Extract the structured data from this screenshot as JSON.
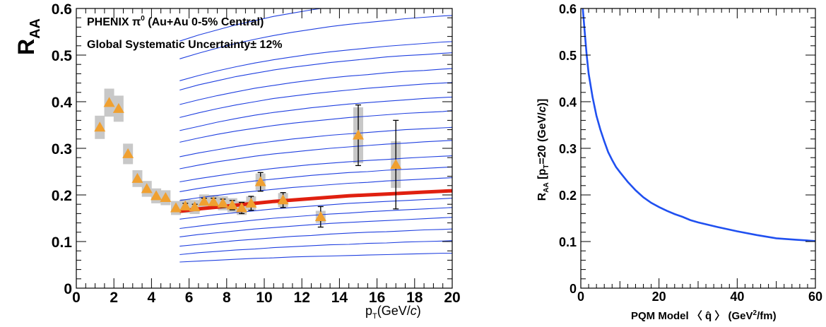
{
  "chart_data": [
    {
      "type": "scatter",
      "ylabel_main": "R",
      "ylabel_sub": "AA",
      "xlabel_main": "p",
      "xlabel_sub": "T",
      "xlabel_rest": "(GeV/",
      "xlabel_c": "c",
      "xlabel_close": ")",
      "annotation_line1_a": "PHENIX π",
      "annotation_line1_sup": "0",
      "annotation_line1_b": " (Au+Au 0-5% Central)",
      "annotation_line2": "Global Systematic Uncertainty± 12%",
      "xlim": [
        0,
        20
      ],
      "ylim": [
        0,
        0.6
      ],
      "xticks": [
        "0",
        "2",
        "4",
        "6",
        "8",
        "10",
        "12",
        "14",
        "16",
        "18",
        "20"
      ],
      "yticks": [
        "0",
        "0.1",
        "0.2",
        "0.3",
        "0.4",
        "0.5",
        "0.6"
      ],
      "grid": false,
      "colors": {
        "data": "#f0a030",
        "systematic": "#c8c8c8",
        "model_curves": "#2040e0",
        "best_fit": "#e02010",
        "error_bars": "#000000"
      },
      "data_points": [
        {
          "x": 1.25,
          "y": 0.345,
          "syst": 0.025,
          "stat": 0.0
        },
        {
          "x": 1.75,
          "y": 0.398,
          "syst": 0.03,
          "stat": 0.0
        },
        {
          "x": 2.25,
          "y": 0.385,
          "syst": 0.028,
          "stat": 0.0
        },
        {
          "x": 2.75,
          "y": 0.288,
          "syst": 0.022,
          "stat": 0.0
        },
        {
          "x": 3.25,
          "y": 0.235,
          "syst": 0.018,
          "stat": 0.0
        },
        {
          "x": 3.75,
          "y": 0.213,
          "syst": 0.017,
          "stat": 0.0
        },
        {
          "x": 4.25,
          "y": 0.198,
          "syst": 0.016,
          "stat": 0.0
        },
        {
          "x": 4.75,
          "y": 0.194,
          "syst": 0.016,
          "stat": 0.0
        },
        {
          "x": 5.3,
          "y": 0.172,
          "syst": 0.015,
          "stat": 0.0
        },
        {
          "x": 5.8,
          "y": 0.176,
          "syst": 0.015,
          "stat": 0.006
        },
        {
          "x": 6.3,
          "y": 0.174,
          "syst": 0.015,
          "stat": 0.006
        },
        {
          "x": 6.8,
          "y": 0.186,
          "syst": 0.015,
          "stat": 0.007
        },
        {
          "x": 7.3,
          "y": 0.185,
          "syst": 0.015,
          "stat": 0.008
        },
        {
          "x": 7.8,
          "y": 0.182,
          "syst": 0.015,
          "stat": 0.009
        },
        {
          "x": 8.3,
          "y": 0.178,
          "syst": 0.015,
          "stat": 0.01
        },
        {
          "x": 8.8,
          "y": 0.172,
          "syst": 0.015,
          "stat": 0.012
        },
        {
          "x": 9.3,
          "y": 0.182,
          "syst": 0.015,
          "stat": 0.015
        },
        {
          "x": 9.8,
          "y": 0.228,
          "syst": 0.018,
          "stat": 0.02
        },
        {
          "x": 11.0,
          "y": 0.189,
          "syst": 0.015,
          "stat": 0.016
        },
        {
          "x": 13.0,
          "y": 0.153,
          "syst": 0.013,
          "stat": 0.022
        },
        {
          "x": 15.0,
          "y": 0.328,
          "syst": 0.06,
          "stat": 0.065
        },
        {
          "x": 17.0,
          "y": 0.265,
          "syst": 0.05,
          "stat": 0.095
        }
      ],
      "model_x": [
        5.5,
        6.5,
        7.5,
        8.5,
        9.5,
        10.5,
        11.5,
        12.5,
        13.5,
        14.5,
        15.5,
        16.5,
        17.5,
        18.5,
        19.5,
        20
      ],
      "model_curves": [
        [
          0.056,
          0.058,
          0.06,
          0.062,
          0.064,
          0.065,
          0.067,
          0.068,
          0.069,
          0.07,
          0.071,
          0.072,
          0.073,
          0.074,
          0.075,
          0.075
        ],
        [
          0.072,
          0.076,
          0.079,
          0.082,
          0.084,
          0.087,
          0.089,
          0.091,
          0.093,
          0.094,
          0.096,
          0.097,
          0.099,
          0.1,
          0.101,
          0.102
        ],
        [
          0.09,
          0.094,
          0.098,
          0.102,
          0.105,
          0.108,
          0.111,
          0.113,
          0.116,
          0.118,
          0.12,
          0.121,
          0.123,
          0.125,
          0.126,
          0.127
        ],
        [
          0.11,
          0.115,
          0.119,
          0.123,
          0.127,
          0.13,
          0.133,
          0.136,
          0.139,
          0.141,
          0.143,
          0.145,
          0.147,
          0.149,
          0.151,
          0.152
        ],
        [
          0.128,
          0.133,
          0.138,
          0.142,
          0.146,
          0.15,
          0.153,
          0.156,
          0.159,
          0.161,
          0.164,
          0.166,
          0.168,
          0.17,
          0.172,
          0.173
        ],
        [
          0.148,
          0.153,
          0.158,
          0.162,
          0.166,
          0.17,
          0.173,
          0.176,
          0.179,
          0.182,
          0.184,
          0.186,
          0.188,
          0.19,
          0.192,
          0.193
        ],
        [
          0.188,
          0.194,
          0.199,
          0.204,
          0.208,
          0.212,
          0.216,
          0.219,
          0.222,
          0.225,
          0.227,
          0.23,
          0.232,
          0.234,
          0.236,
          0.237
        ],
        [
          0.207,
          0.214,
          0.22,
          0.225,
          0.23,
          0.234,
          0.238,
          0.242,
          0.245,
          0.248,
          0.25,
          0.253,
          0.255,
          0.257,
          0.259,
          0.26
        ],
        [
          0.228,
          0.235,
          0.241,
          0.247,
          0.252,
          0.257,
          0.261,
          0.265,
          0.268,
          0.271,
          0.274,
          0.276,
          0.279,
          0.281,
          0.283,
          0.284
        ],
        [
          0.256,
          0.264,
          0.271,
          0.277,
          0.283,
          0.288,
          0.292,
          0.296,
          0.3,
          0.303,
          0.306,
          0.309,
          0.311,
          0.314,
          0.316,
          0.317
        ],
        [
          0.282,
          0.29,
          0.297,
          0.304,
          0.31,
          0.315,
          0.32,
          0.324,
          0.328,
          0.331,
          0.334,
          0.337,
          0.34,
          0.342,
          0.344,
          0.345
        ],
        [
          0.313,
          0.322,
          0.33,
          0.337,
          0.343,
          0.349,
          0.354,
          0.358,
          0.362,
          0.366,
          0.369,
          0.372,
          0.375,
          0.377,
          0.379,
          0.381
        ],
        [
          0.338,
          0.347,
          0.356,
          0.364,
          0.371,
          0.377,
          0.382,
          0.387,
          0.391,
          0.395,
          0.398,
          0.401,
          0.404,
          0.407,
          0.409,
          0.41
        ],
        [
          0.366,
          0.376,
          0.385,
          0.393,
          0.4,
          0.407,
          0.412,
          0.417,
          0.421,
          0.425,
          0.429,
          0.432,
          0.435,
          0.438,
          0.44,
          0.441
        ],
        [
          0.394,
          0.404,
          0.413,
          0.421,
          0.429,
          0.435,
          0.441,
          0.446,
          0.451,
          0.455,
          0.458,
          0.462,
          0.465,
          0.467,
          0.47,
          0.471
        ],
        [
          0.425,
          0.436,
          0.445,
          0.454,
          0.461,
          0.468,
          0.474,
          0.479,
          0.484,
          0.488,
          0.492,
          0.496,
          0.499,
          0.501,
          0.504,
          0.505
        ],
        [
          0.445,
          0.456,
          0.466,
          0.475,
          0.483,
          0.49,
          0.496,
          0.502,
          0.507,
          0.511,
          0.515,
          0.519,
          0.522,
          0.525,
          0.528,
          0.529
        ],
        [
          0.492,
          0.504,
          0.515,
          0.525,
          0.534,
          0.542,
          0.549,
          0.555,
          0.561,
          0.566,
          0.57,
          0.574,
          0.578,
          0.581,
          0.584,
          0.585
        ],
        [
          0.53,
          0.543,
          0.554,
          0.565,
          0.574,
          0.583,
          0.59,
          0.597,
          0.603,
          0.608,
          0.613,
          0.617,
          0.621,
          0.625,
          0.628,
          0.63
        ]
      ],
      "best_fit": [
        0.165,
        0.17,
        0.174,
        0.178,
        0.182,
        0.186,
        0.189,
        0.192,
        0.195,
        0.198,
        0.2,
        0.202,
        0.204,
        0.206,
        0.208,
        0.209
      ]
    },
    {
      "type": "line",
      "ylabel_main": "R",
      "ylabel_sub": "AA",
      "ylabel_p": " [p",
      "ylabel_psub": "T",
      "ylabel_rest": "=20 (GeV/",
      "ylabel_c": "c",
      "ylabel_close": ")]",
      "xlabel_a": "PQM Model ",
      "xlabel_q": "〈 q̂ 〉",
      "xlabel_b": " (GeV",
      "xlabel_sup": "2",
      "xlabel_c": "/fm)",
      "xlim": [
        0,
        60
      ],
      "ylim": [
        0,
        0.6
      ],
      "xticks": [
        "0",
        "20",
        "40",
        "60"
      ],
      "yticks": [
        "0",
        "0.1",
        "0.2",
        "0.3",
        "0.4",
        "0.5",
        "0.6"
      ],
      "grid": false,
      "colors": {
        "line": "#2050f0"
      },
      "x": [
        0.5,
        1,
        1.5,
        2,
        3,
        4,
        5,
        6,
        7,
        8,
        9,
        10,
        12,
        14,
        16,
        18,
        20,
        22,
        24,
        26,
        28,
        30,
        35,
        40,
        45,
        50,
        55,
        60
      ],
      "y": [
        0.6,
        0.55,
        0.5,
        0.46,
        0.41,
        0.37,
        0.34,
        0.315,
        0.292,
        0.275,
        0.26,
        0.249,
        0.228,
        0.21,
        0.195,
        0.183,
        0.174,
        0.166,
        0.159,
        0.153,
        0.146,
        0.141,
        0.131,
        0.122,
        0.114,
        0.107,
        0.104,
        0.101
      ]
    }
  ]
}
